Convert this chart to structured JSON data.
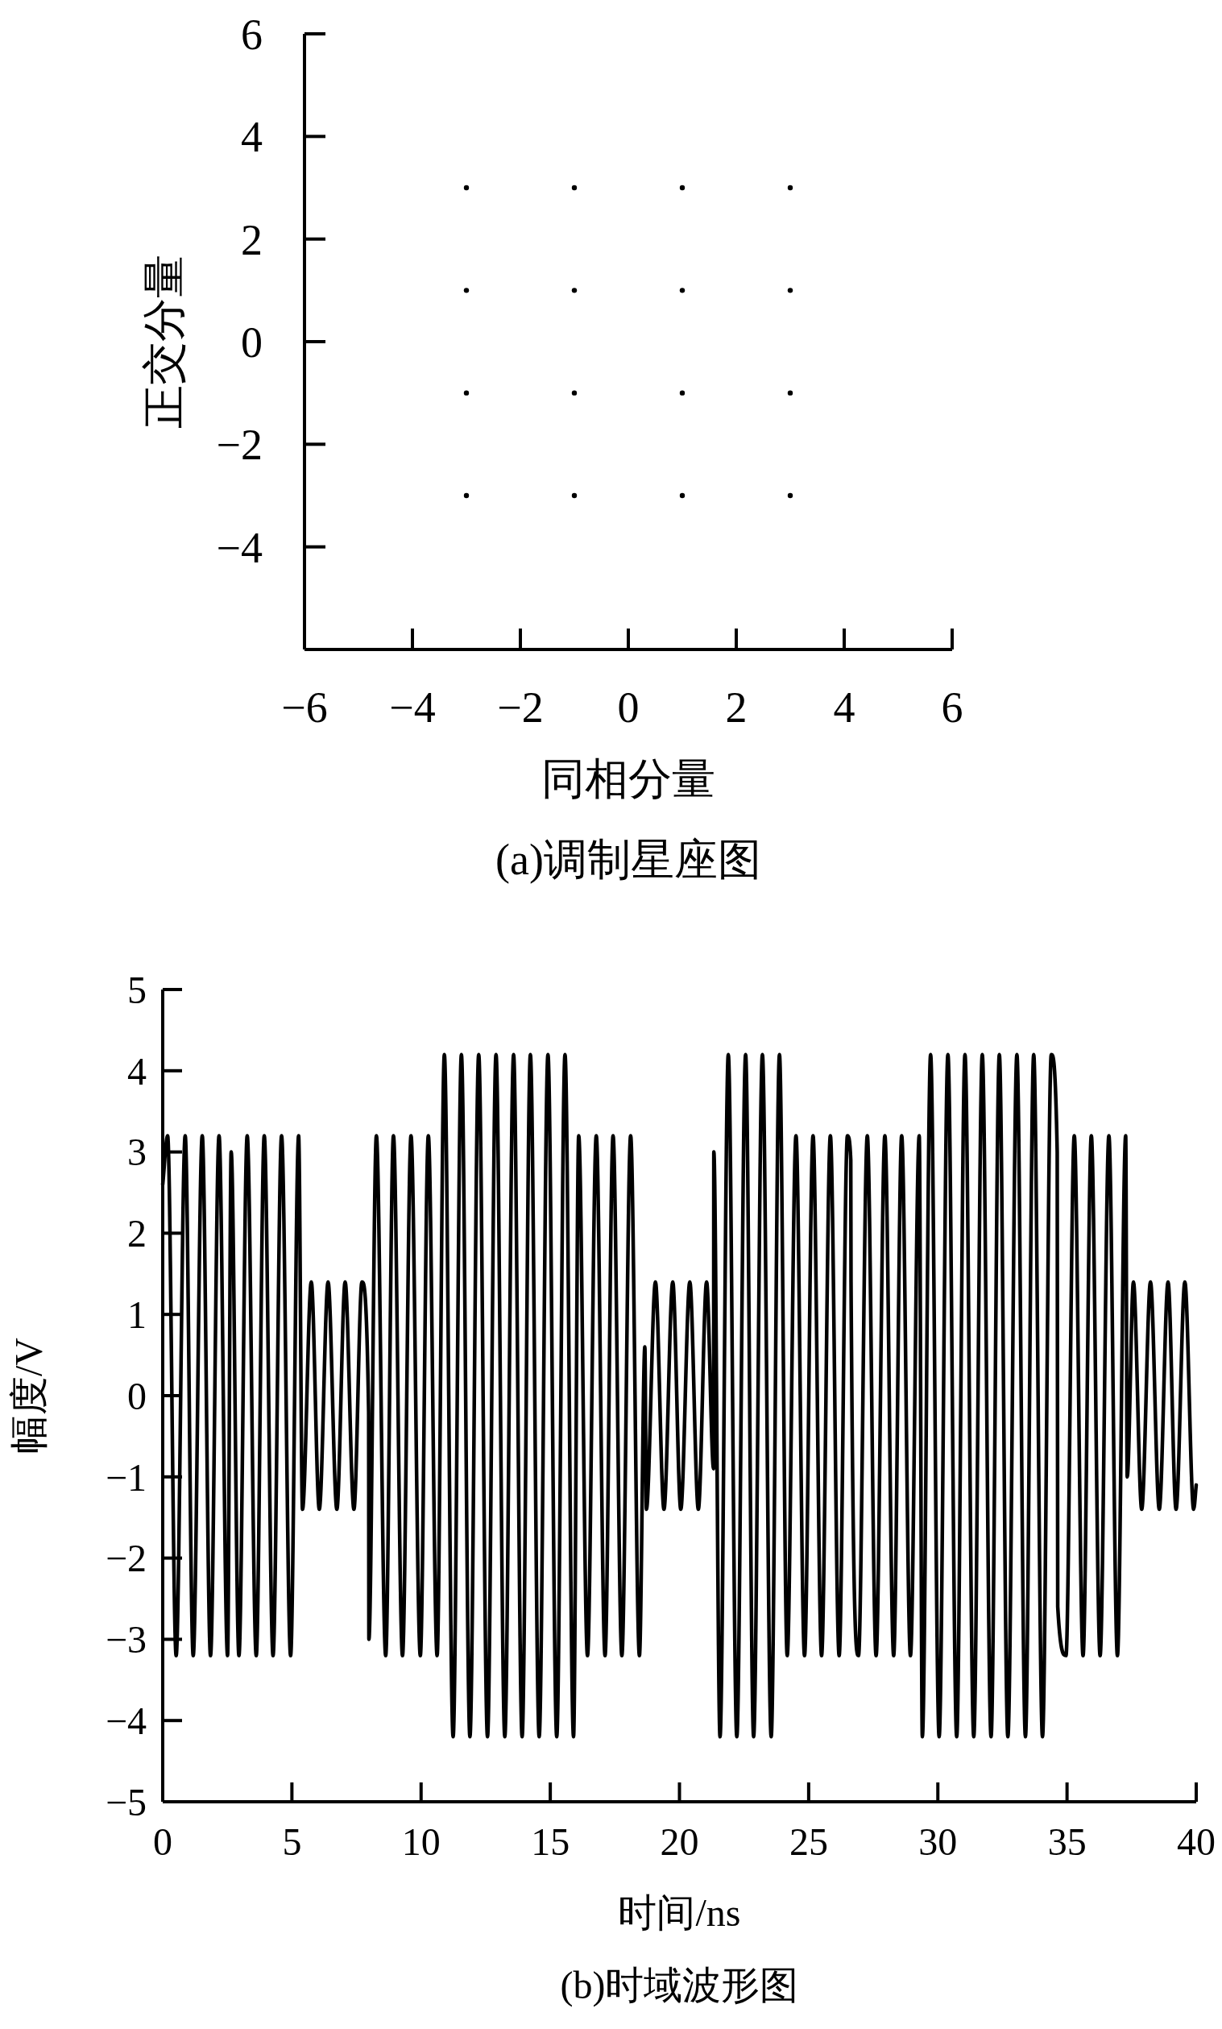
{
  "chart_data": [
    {
      "type": "scatter",
      "title": "(a)调制星座图",
      "xlabel": "同相分量",
      "ylabel": "正交分量",
      "color": "#000000",
      "marker": "circle",
      "x": [
        -3,
        -1,
        1,
        3,
        -3,
        -1,
        1,
        3,
        -3,
        -1,
        1,
        3,
        -3,
        -1,
        1,
        3
      ],
      "values": [
        3,
        3,
        3,
        3,
        1,
        1,
        1,
        1,
        -1,
        -1,
        -1,
        -1,
        -3,
        -3,
        -3,
        -3
      ],
      "xlim": [
        -6,
        6
      ],
      "ylim": [
        -6,
        6
      ],
      "xticks": [
        -6,
        -4,
        -2,
        0,
        2,
        4,
        6
      ],
      "yticks": [
        {
          "value": -6,
          "label": null
        },
        -4,
        -2,
        0,
        2,
        4,
        6
      ]
    },
    {
      "type": "line",
      "title": "(b)时域波形图",
      "xlabel": "时间/ns",
      "ylabel": "幅度/V",
      "color": "#000000",
      "line_style": "solid",
      "x": [
        0,
        0.19,
        0.52,
        0.87,
        1.18,
        1.53,
        1.85,
        2.18,
        2.51,
        2.65,
        2.95,
        3.27,
        3.62,
        3.93,
        4.27,
        4.6,
        4.95,
        5.26,
        5.41,
        5.75,
        6.06,
        6.4,
        6.74,
        7.06,
        7.4,
        7.71,
        7.97,
        7.98,
        8.27,
        8.63,
        8.93,
        9.28,
        9.61,
        9.97,
        10.28,
        10.62,
        10.9,
        11.24,
        11.56,
        11.89,
        12.23,
        12.57,
        12.9,
        13.24,
        13.58,
        13.91,
        14.23,
        14.57,
        14.91,
        15.25,
        15.57,
        15.9,
        16.1,
        16.44,
        16.78,
        17.12,
        17.43,
        17.77,
        18.11,
        18.45,
        18.66,
        18.72,
        19.07,
        19.4,
        19.74,
        20.05,
        20.4,
        20.73,
        21.05,
        21.32,
        21.33,
        21.57,
        21.89,
        22.22,
        22.56,
        22.87,
        23.21,
        23.55,
        23.87,
        24.17,
        24.51,
        24.84,
        25.17,
        25.5,
        25.84,
        26.18,
        26.5,
        26.63,
        26.64,
        26.93,
        27.27,
        27.61,
        27.95,
        28.29,
        28.6,
        28.94,
        29.28,
        29.4,
        29.72,
        30.05,
        30.39,
        30.73,
        31.05,
        31.39,
        31.72,
        32.06,
        32.38,
        32.71,
        33.06,
        33.39,
        33.71,
        34.05,
        34.39,
        34.62,
        34.64,
        34.96,
        35.28,
        35.62,
        35.94,
        36.28,
        36.62,
        36.95,
        37.27,
        37.33,
        37.57,
        37.89,
        38.23,
        38.57,
        38.91,
        39.22,
        39.56,
        39.9,
        40
      ],
      "values": [
        2.6,
        3.2,
        -3.2,
        3.2,
        -3.2,
        3.2,
        -3.2,
        3.2,
        -3.2,
        3.0,
        -3.2,
        3.2,
        -3.2,
        3.2,
        -3.2,
        3.2,
        -3.2,
        3.2,
        -1.4,
        1.4,
        -1.4,
        1.4,
        -1.4,
        1.4,
        -1.4,
        1.4,
        -0.2,
        -3.0,
        3.2,
        -3.2,
        3.2,
        -3.2,
        3.2,
        -3.2,
        3.2,
        -3.2,
        4.2,
        -4.2,
        4.2,
        -4.2,
        4.2,
        -4.2,
        4.2,
        -4.2,
        4.2,
        -4.2,
        4.2,
        -4.2,
        4.2,
        -4.2,
        4.2,
        -4.2,
        3.2,
        -3.2,
        3.2,
        -3.2,
        3.2,
        -3.2,
        3.2,
        -3.2,
        0.6,
        -1.4,
        1.4,
        -1.4,
        1.4,
        -1.4,
        1.4,
        -1.4,
        1.4,
        -0.9,
        3.0,
        -4.2,
        4.2,
        -4.2,
        4.2,
        -4.2,
        4.2,
        -4.2,
        4.2,
        -3.2,
        3.2,
        -3.2,
        3.2,
        -3.2,
        3.2,
        -3.2,
        3.2,
        2.9,
        1.4,
        -3.2,
        3.2,
        -3.2,
        3.2,
        -3.2,
        3.2,
        -3.2,
        3.2,
        -4.2,
        4.2,
        -4.2,
        4.2,
        -4.2,
        4.2,
        -4.2,
        4.2,
        -4.2,
        4.2,
        -4.2,
        4.2,
        -4.2,
        4.2,
        -4.2,
        4.2,
        3.0,
        -2.6,
        -3.2,
        3.2,
        -3.2,
        3.2,
        -3.2,
        3.2,
        -3.2,
        3.2,
        -1.0,
        1.4,
        -1.4,
        1.4,
        -1.4,
        1.4,
        -1.4,
        1.4,
        -1.4,
        -1.1
      ],
      "xlim": [
        0,
        40
      ],
      "ylim": [
        -5,
        5
      ],
      "xticks": [
        0,
        5,
        10,
        15,
        20,
        25,
        30,
        35,
        40
      ],
      "yticks": [
        -5,
        -4,
        -3,
        -2,
        -1,
        0,
        1,
        2,
        3,
        4,
        5
      ]
    }
  ]
}
